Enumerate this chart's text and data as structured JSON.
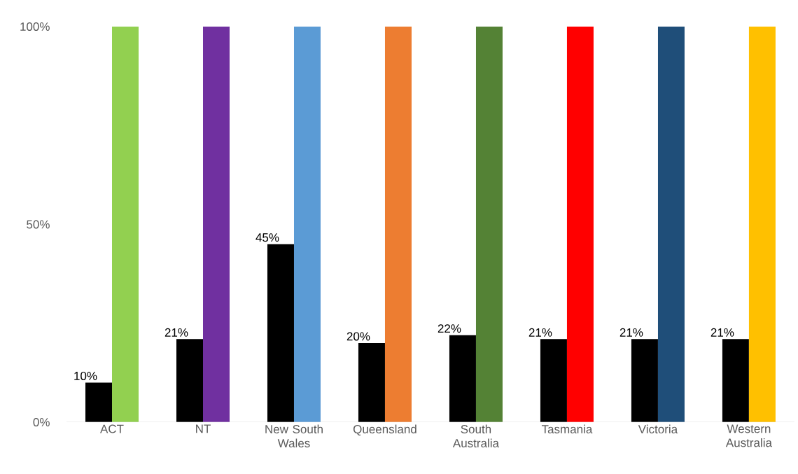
{
  "chart_data": {
    "type": "bar",
    "categories": [
      "ACT",
      "NT",
      "New South Wales",
      "Queensland",
      "South Australia",
      "Tasmania",
      "Victoria",
      "Western Australia"
    ],
    "series": [
      {
        "color": "#000000",
        "values": [
          10,
          21,
          45,
          20,
          22,
          21,
          21,
          21
        ],
        "value_labels": [
          "10%",
          "21%",
          "45%",
          "20%",
          "22%",
          "21%",
          "21%",
          "21%"
        ]
      },
      {
        "colors": [
          "#92D050",
          "#7030A0",
          "#5B9BD5",
          "#ED7D31",
          "#548235",
          "#FF0000",
          "#1F4E79",
          "#FFC000"
        ],
        "values": [
          100,
          100,
          100,
          100,
          100,
          100,
          100,
          100
        ]
      }
    ],
    "ylim": [
      0,
      100
    ],
    "yticks": [
      {
        "value": 0,
        "label": "0%"
      },
      {
        "value": 50,
        "label": "50%"
      },
      {
        "value": 100,
        "label": "100%"
      }
    ]
  }
}
